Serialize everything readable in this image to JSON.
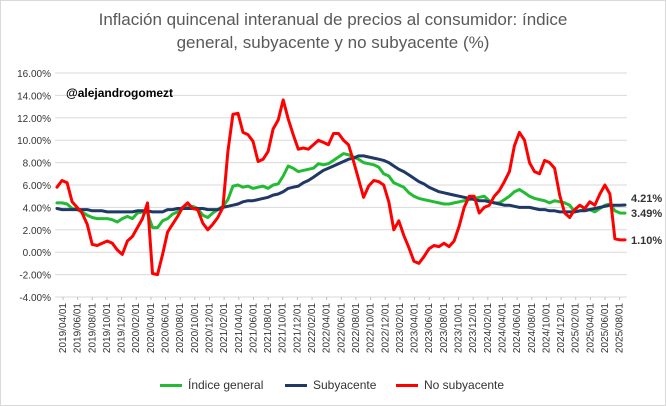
{
  "chart_data": {
    "type": "line",
    "title_line1": "Inflación quincenal interanual de precios al consumidor: índice",
    "title_line2": "general, subyacente y no subyacente (%)",
    "watermark": "@alejandrogomezt",
    "xlabel": "",
    "ylabel": "",
    "ylim": [
      -4,
      16
    ],
    "y_ticks": [
      "16.00%",
      "14.00%",
      "12.00%",
      "10.00%",
      "8.00%",
      "6.00%",
      "4.00%",
      "2.00%",
      "0.00%",
      "-2.00%",
      "-4.00%"
    ],
    "x_tick_labels": [
      "2019/04/01",
      "2019/06/01",
      "2019/08/01",
      "2019/10/01",
      "2019/12/01",
      "2020/02/01",
      "2020/04/01",
      "2020/06/01",
      "2020/08/01",
      "2020/10/01",
      "2020/12/01",
      "2021/02/01",
      "2021/04/01",
      "2021/06/01",
      "2021/08/01",
      "2021/10/01",
      "2021/12/01",
      "2022/02/01",
      "2022/04/01",
      "2022/06/01",
      "2022/08/01",
      "2022/10/01",
      "2022/12/01",
      "2023/02/01",
      "2023/04/01",
      "2023/06/01",
      "2023/08/01",
      "2023/10/01",
      "2023/12/01",
      "2024/02/01",
      "2024/04/01",
      "2024/06/01",
      "2024/08/01",
      "2024/10/01",
      "2024/12/01",
      "2025/02/01",
      "2025/04/01",
      "2025/06/01",
      "2025/08/01"
    ],
    "grid": true,
    "legend_position": "bottom",
    "end_labels": [
      "4.21%",
      "3.49%",
      "1.10%"
    ],
    "series": [
      {
        "name": "Índice general",
        "color": "#22bb33",
        "values": [
          4.4,
          4.4,
          4.3,
          3.9,
          3.8,
          3.6,
          3.3,
          3.1,
          3.0,
          3.0,
          3.0,
          2.9,
          2.7,
          3.0,
          3.2,
          3.0,
          3.5,
          3.6,
          3.5,
          2.2,
          2.2,
          2.8,
          3.0,
          3.4,
          3.6,
          4.0,
          4.0,
          4.1,
          3.9,
          3.3,
          3.1,
          3.5,
          3.8,
          4.1,
          4.7,
          5.9,
          6.0,
          5.8,
          5.9,
          5.7,
          5.8,
          5.9,
          5.7,
          6.0,
          6.1,
          6.8,
          7.7,
          7.5,
          7.2,
          7.3,
          7.4,
          7.5,
          7.9,
          7.8,
          7.9,
          8.2,
          8.5,
          8.8,
          8.7,
          8.5,
          8.3,
          8.0,
          7.9,
          7.8,
          7.6,
          7.0,
          6.8,
          6.2,
          6.0,
          5.8,
          5.3,
          5.0,
          4.8,
          4.7,
          4.6,
          4.5,
          4.4,
          4.3,
          4.3,
          4.4,
          4.5,
          4.6,
          4.7,
          4.8,
          4.9,
          5.0,
          4.6,
          4.4,
          4.4,
          4.7,
          5.0,
          5.4,
          5.6,
          5.3,
          5.0,
          4.8,
          4.7,
          4.6,
          4.4,
          4.6,
          4.5,
          4.4,
          4.2,
          3.6,
          3.7,
          3.8,
          3.8,
          3.6,
          3.9,
          4.2,
          4.3,
          3.7,
          3.5,
          3.49
        ]
      },
      {
        "name": "Subyacente",
        "color": "#1f3864",
        "values": [
          3.9,
          3.8,
          3.8,
          3.8,
          3.8,
          3.8,
          3.8,
          3.7,
          3.7,
          3.7,
          3.6,
          3.6,
          3.6,
          3.6,
          3.6,
          3.6,
          3.7,
          3.7,
          3.7,
          3.6,
          3.6,
          3.6,
          3.8,
          3.8,
          3.9,
          3.9,
          3.9,
          3.9,
          3.9,
          3.9,
          3.8,
          3.8,
          3.8,
          4.0,
          4.1,
          4.2,
          4.3,
          4.5,
          4.6,
          4.6,
          4.7,
          4.8,
          4.9,
          5.1,
          5.2,
          5.4,
          5.7,
          5.8,
          5.9,
          6.2,
          6.4,
          6.7,
          7.0,
          7.3,
          7.5,
          7.7,
          7.9,
          8.1,
          8.3,
          8.4,
          8.6,
          8.6,
          8.5,
          8.4,
          8.3,
          8.2,
          8.0,
          7.7,
          7.4,
          7.2,
          6.9,
          6.6,
          6.3,
          6.1,
          5.8,
          5.6,
          5.4,
          5.3,
          5.2,
          5.1,
          5.0,
          4.9,
          4.8,
          4.7,
          4.6,
          4.6,
          4.5,
          4.4,
          4.3,
          4.2,
          4.2,
          4.1,
          4.0,
          4.0,
          4.0,
          3.9,
          3.8,
          3.8,
          3.7,
          3.7,
          3.6,
          3.6,
          3.6,
          3.6,
          3.7,
          3.7,
          3.8,
          3.9,
          4.0,
          4.1,
          4.2,
          4.2,
          4.2,
          4.21
        ]
      },
      {
        "name": "No subyacente",
        "color": "#ff0000",
        "values": [
          5.8,
          6.4,
          6.2,
          4.5,
          4.0,
          3.5,
          2.5,
          0.7,
          0.6,
          0.8,
          1.0,
          0.8,
          0.2,
          -0.2,
          1.0,
          1.4,
          2.2,
          3.0,
          4.4,
          -1.9,
          -2.0,
          -0.2,
          1.8,
          2.5,
          3.2,
          4.0,
          4.4,
          3.9,
          3.8,
          2.6,
          2.0,
          2.5,
          3.1,
          4.0,
          9.0,
          12.3,
          12.4,
          10.7,
          10.5,
          9.9,
          8.1,
          8.3,
          9.0,
          11.0,
          11.8,
          13.6,
          11.9,
          10.5,
          9.2,
          9.3,
          9.2,
          9.6,
          10.0,
          9.8,
          9.6,
          10.6,
          10.6,
          10.0,
          9.6,
          8.1,
          6.5,
          4.9,
          5.9,
          6.4,
          6.3,
          6.0,
          4.5,
          2.0,
          2.8,
          1.5,
          0.4,
          -0.8,
          -1.0,
          -0.4,
          0.3,
          0.6,
          0.5,
          0.8,
          0.5,
          1.0,
          2.3,
          4.0,
          5.0,
          5.0,
          3.5,
          4.0,
          4.2,
          5.0,
          5.5,
          6.3,
          7.2,
          9.5,
          10.7,
          10.0,
          8.0,
          7.2,
          7.0,
          8.2,
          8.0,
          7.5,
          5.1,
          3.5,
          3.1,
          3.8,
          4.2,
          3.9,
          4.5,
          4.2,
          5.2,
          6.0,
          5.2,
          1.2,
          1.1,
          1.1
        ]
      }
    ]
  }
}
